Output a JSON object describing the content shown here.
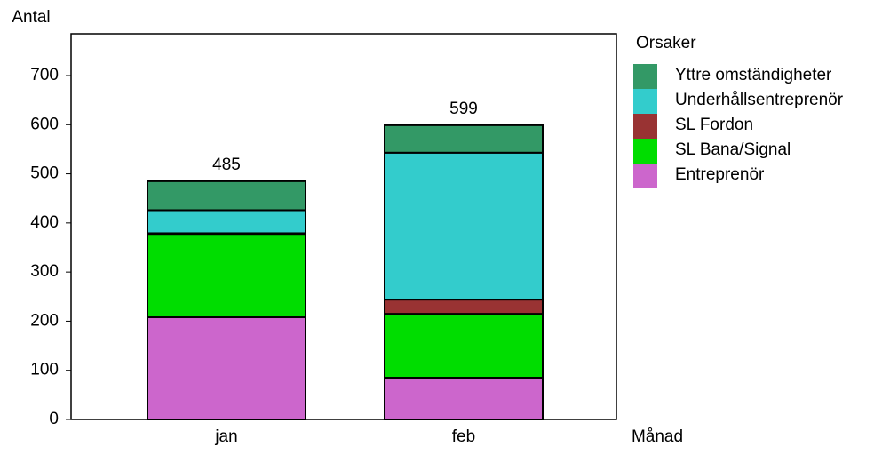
{
  "chart_data": {
    "type": "stacked_bar",
    "y_label": "Antal",
    "x_label": "Månad",
    "legend_title": "Orsaker",
    "categories": [
      "jan",
      "feb"
    ],
    "series": [
      {
        "name": "Entreprenör",
        "color": "#cc66cc",
        "values": [
          208,
          85
        ]
      },
      {
        "name": "SL Bana/Signal",
        "color": "#00dd00",
        "values": [
          168,
          130
        ]
      },
      {
        "name": "SL Fordon",
        "color": "#993333",
        "values": [
          3,
          29
        ]
      },
      {
        "name": "Underhållsentreprenör",
        "color": "#33cccc",
        "values": [
          47,
          299
        ]
      },
      {
        "name": "Yttre omständigheter",
        "color": "#339966",
        "values": [
          59,
          56
        ]
      }
    ],
    "totals": [
      485,
      599
    ],
    "ylim": [
      0,
      785
    ],
    "yticks": [
      0,
      100,
      200,
      300,
      400,
      500,
      600,
      700
    ],
    "legend": "right"
  }
}
